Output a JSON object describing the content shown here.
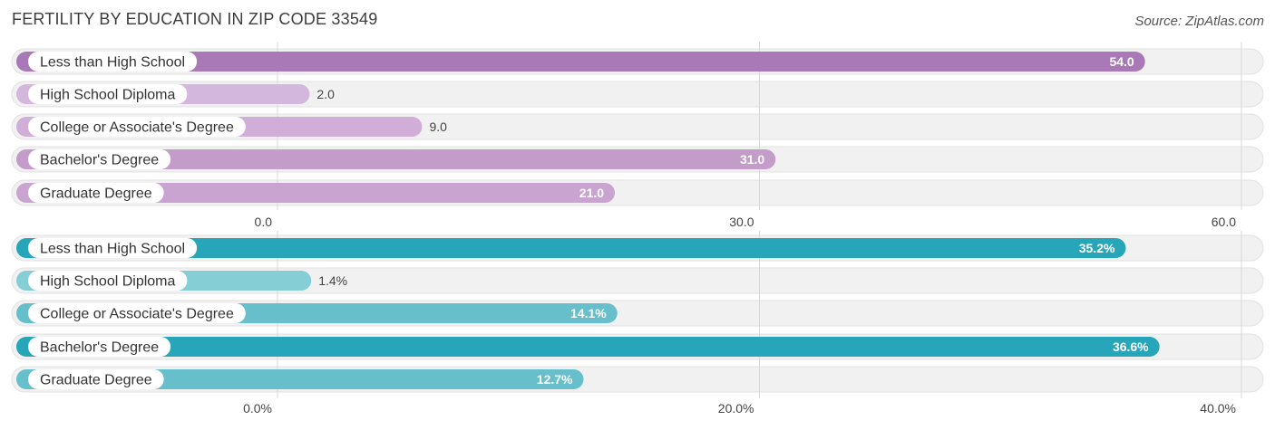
{
  "title": "FERTILITY BY EDUCATION IN ZIP CODE 33549",
  "source": "Source: ZipAtlas.com",
  "chart_data": [
    {
      "type": "bar",
      "orientation": "horizontal",
      "categories": [
        "Less than High School",
        "High School Diploma",
        "College or Associate's Degree",
        "Bachelor's Degree",
        "Graduate Degree"
      ],
      "values": [
        54.0,
        2.0,
        9.0,
        31.0,
        21.0
      ],
      "value_labels": [
        "54.0",
        "2.0",
        "9.0",
        "31.0",
        "21.0"
      ],
      "xlim": [
        0,
        60
      ],
      "ticks": [
        0,
        30,
        60
      ],
      "tick_labels": [
        "0.0",
        "30.0",
        "60.0"
      ],
      "colors": [
        "#a878b7",
        "#d4b7dc",
        "#d0aed8",
        "#c49cca",
        "#c9a4d0"
      ]
    },
    {
      "type": "bar",
      "orientation": "horizontal",
      "categories": [
        "Less than High School",
        "High School Diploma",
        "College or Associate's Degree",
        "Bachelor's Degree",
        "Graduate Degree"
      ],
      "values": [
        35.2,
        1.4,
        14.1,
        36.6,
        12.7
      ],
      "value_labels": [
        "35.2%",
        "1.4%",
        "14.1%",
        "36.6%",
        "12.7%"
      ],
      "xlim": [
        0,
        40
      ],
      "ticks": [
        0,
        20,
        40
      ],
      "tick_labels": [
        "0.0%",
        "20.0%",
        "40.0%"
      ],
      "colors": [
        "#26a6b8",
        "#86ced6",
        "#66bfca",
        "#26a6b8",
        "#66bfca"
      ]
    }
  ]
}
